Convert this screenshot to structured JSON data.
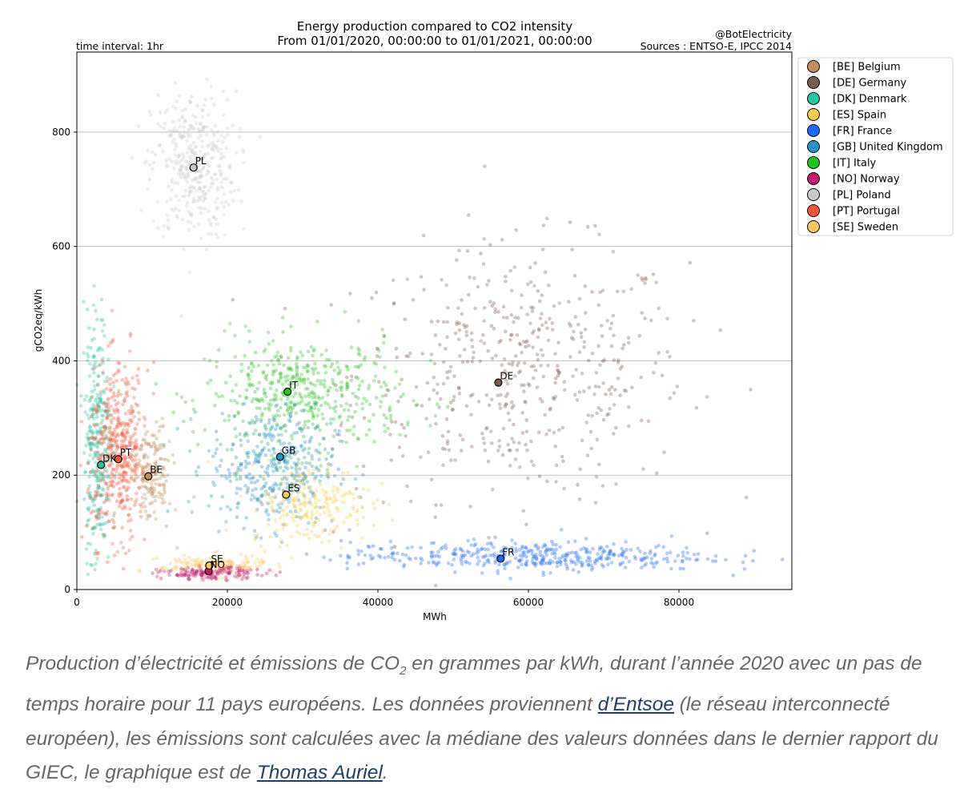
{
  "chart_data": {
    "type": "scatter",
    "title": "Energy production compared to CO2 intensity",
    "subtitle": "From 01/01/2020, 00:00:00 to 01/01/2021, 00:00:00",
    "top_left_note": "time interval: 1hr",
    "top_right_note_1": "@BotElectricity",
    "top_right_note_2": "Sources : ENTSO-E, IPCC 2014",
    "xlabel": "MWh",
    "ylabel": "gCO2eq/kWh",
    "xlim": [
      0,
      95000
    ],
    "ylim": [
      0,
      940
    ],
    "xticks": [
      0,
      20000,
      40000,
      60000,
      80000
    ],
    "xtick_labels": [
      "0",
      "20000",
      "40000",
      "60000",
      "80000"
    ],
    "yticks": [
      0,
      200,
      400,
      600,
      800
    ],
    "ytick_labels": [
      "0",
      "200",
      "400",
      "600",
      "800"
    ],
    "grid": "horizontal",
    "legend_position": "outside-right-top",
    "series": [
      {
        "name": "[BE] Belgium",
        "code": "BE",
        "color": "#c18e5b",
        "median": {
          "x": 9500,
          "y": 198
        },
        "cloud": {
          "cx": 10000,
          "cy": 200,
          "sx": 1300,
          "sy": 42,
          "n": 160
        }
      },
      {
        "name": "[DE] Germany",
        "code": "DE",
        "color": "#7d5a4c",
        "median": {
          "x": 56000,
          "y": 362
        },
        "cloud": {
          "cx": 59000,
          "cy": 380,
          "sx": 11000,
          "sy": 110,
          "n": 520
        }
      },
      {
        "name": "[DK] Denmark",
        "code": "DK",
        "color": "#1fc7a0",
        "median": {
          "x": 3200,
          "y": 218
        },
        "cloud": {
          "cx": 2700,
          "cy": 260,
          "sx": 900,
          "sy": 110,
          "n": 300
        }
      },
      {
        "name": "[ES] Spain",
        "code": "ES",
        "color": "#f5cd43",
        "median": {
          "x": 27800,
          "y": 166
        },
        "cloud": {
          "cx": 31000,
          "cy": 150,
          "sx": 4000,
          "sy": 35,
          "n": 240
        }
      },
      {
        "name": "[FR] France",
        "code": "FR",
        "color": "#1a6aff",
        "median": {
          "x": 56300,
          "y": 54
        },
        "cloud": {
          "cx": 60000,
          "cy": 58,
          "sx": 12000,
          "sy": 13,
          "n": 420
        }
      },
      {
        "name": "[GB] United Kingdom",
        "code": "GB",
        "color": "#1e93c9",
        "median": {
          "x": 27000,
          "y": 232
        },
        "cloud": {
          "cx": 26000,
          "cy": 215,
          "sx": 4200,
          "sy": 52,
          "n": 380
        }
      },
      {
        "name": "[IT] Italy",
        "code": "IT",
        "color": "#22c61c",
        "median": {
          "x": 28000,
          "y": 346
        },
        "cloud": {
          "cx": 30000,
          "cy": 340,
          "sx": 6500,
          "sy": 50,
          "n": 480
        }
      },
      {
        "name": "[NO] Norway",
        "code": "NO",
        "color": "#c4186a",
        "median": {
          "x": 17500,
          "y": 32
        },
        "cloud": {
          "cx": 18000,
          "cy": 28,
          "sx": 3500,
          "sy": 5,
          "n": 140
        }
      },
      {
        "name": "[PL] Poland",
        "code": "PL",
        "color": "#c8c8c8",
        "median": {
          "x": 15500,
          "y": 738
        },
        "cloud": {
          "cx": 15500,
          "cy": 740,
          "sx": 2800,
          "sy": 65,
          "n": 380
        }
      },
      {
        "name": "[PT] Portugal",
        "code": "PT",
        "color": "#f75636",
        "median": {
          "x": 5500,
          "y": 228
        },
        "cloud": {
          "cx": 5500,
          "cy": 240,
          "sx": 2000,
          "sy": 75,
          "n": 460
        }
      },
      {
        "name": "[SE] Sweden",
        "code": "SE",
        "color": "#ffc55a",
        "median": {
          "x": 17600,
          "y": 42
        },
        "cloud": {
          "cx": 18000,
          "cy": 42,
          "sx": 3500,
          "sy": 9,
          "n": 160
        }
      }
    ],
    "annotations": [
      {
        "text": "PL",
        "x": 15500,
        "y": 738
      },
      {
        "text": "IT",
        "x": 28000,
        "y": 346
      },
      {
        "text": "DE",
        "x": 56000,
        "y": 362
      },
      {
        "text": "GB",
        "x": 27000,
        "y": 232
      },
      {
        "text": "PT",
        "x": 5500,
        "y": 228
      },
      {
        "text": "DK",
        "x": 3200,
        "y": 218
      },
      {
        "text": "BE",
        "x": 9500,
        "y": 198
      },
      {
        "text": "ES",
        "x": 27800,
        "y": 166
      },
      {
        "text": "FR",
        "x": 56300,
        "y": 54
      },
      {
        "text": "SE",
        "x": 17600,
        "y": 42
      },
      {
        "text": "NO",
        "x": 17500,
        "y": 32
      }
    ]
  },
  "caption": {
    "part1": "Production d’électricité et émissions de CO",
    "sub": "2",
    "part2": " en grammes par kWh, durant l’année 2020 avec un pas de temps horaire pour 11 pays européens. Les données proviennent ",
    "link1": "d’Entsoe",
    "part3": " (le réseau interconnecté européen), les émissions sont calculées avec la médiane des valeurs données dans le dernier rapport du GIEC, le graphique est de ",
    "link2": "Thomas Auriel",
    "part4": "."
  }
}
